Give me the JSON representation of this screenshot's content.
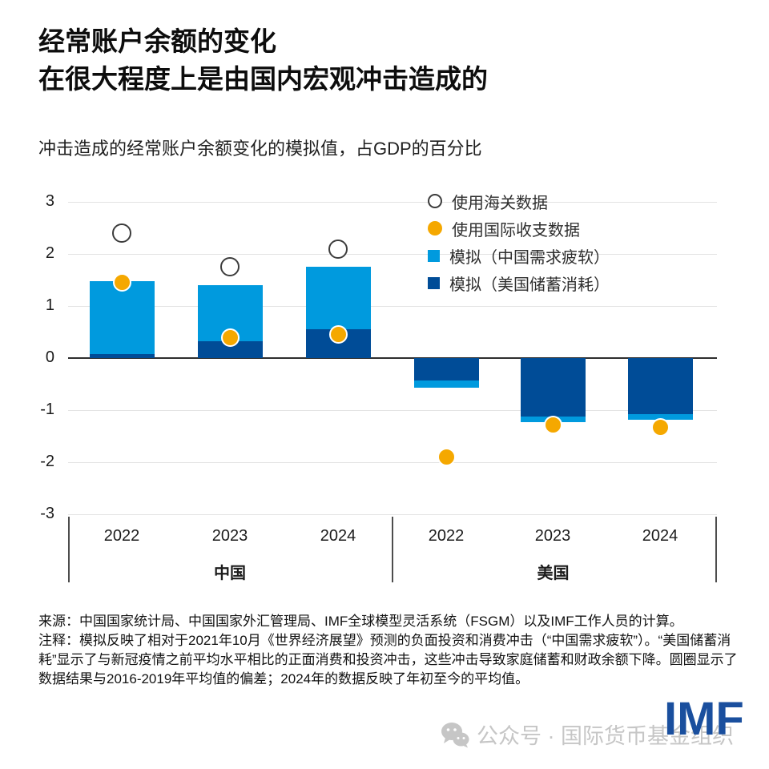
{
  "title": {
    "line1": "经常账户余额的变化",
    "line2": "在很大程度上是由国内宏观冲击造成的"
  },
  "subtitle": "冲击造成的经常账户余额变化的模拟值，占GDP的百分比",
  "legend": {
    "items": [
      {
        "label": "使用海关数据",
        "marker": "open-circle",
        "color": "#ffffff"
      },
      {
        "label": "使用国际收支数据",
        "marker": "filled-circle",
        "color": "#f5a800"
      },
      {
        "label": "模拟（中国需求疲软）",
        "marker": "square",
        "color": "#009ade"
      },
      {
        "label": "模拟（美国储蓄消耗）",
        "marker": "square",
        "color": "#004c97"
      }
    ]
  },
  "chart_data": {
    "type": "bar",
    "stacked": true,
    "title": "冲击造成的经常账户余额变化的模拟值，占GDP的百分比",
    "ylabel": "占GDP的百分比",
    "ylim": [
      -3,
      3
    ],
    "yticks": [
      3,
      2,
      1,
      0,
      -1,
      -2,
      -3
    ],
    "grid": true,
    "legend_position": "top-right",
    "groups": [
      {
        "label": "中国",
        "categories": [
          "2022",
          "2023",
          "2024"
        ]
      },
      {
        "label": "美国",
        "categories": [
          "2022",
          "2023",
          "2024"
        ]
      }
    ],
    "categories": [
      "2022",
      "2023",
      "2024",
      "2022",
      "2023",
      "2024"
    ],
    "series": [
      {
        "name": "模拟（美国储蓄消耗）",
        "color": "#004c97",
        "values": [
          0.08,
          0.33,
          0.55,
          -0.43,
          -1.12,
          -1.08
        ]
      },
      {
        "name": "模拟（中国需求疲软）",
        "color": "#009ade",
        "values": [
          1.4,
          1.07,
          1.2,
          -0.14,
          -0.11,
          -0.1
        ]
      }
    ],
    "markers": [
      {
        "name": "使用海关数据",
        "style": "open-circle",
        "color": "#ffffff",
        "values": [
          2.4,
          1.75,
          2.1,
          null,
          null,
          null
        ]
      },
      {
        "name": "使用国际收支数据",
        "style": "filled-circle",
        "color": "#f5a800",
        "values": [
          1.45,
          0.4,
          0.45,
          -1.9,
          -1.28,
          -1.33
        ]
      }
    ]
  },
  "footer": {
    "source": "来源：中国国家统计局、中国国家外汇管理局、IMF全球模型灵活系统（FSGM）以及IMF工作人员的计算。",
    "note": "注释：模拟反映了相对于2021年10月《世界经济展望》预测的负面投资和消费冲击（“中国需求疲软”）。“美国储蓄消耗”显示了与新冠疫情之前平均水平相比的正面消费和投资冲击，这些冲击导致家庭储蓄和财政余额下降。圆圈显示了数据结果与2016-2019年平均值的偏差；2024年的数据反映了年初至今的平均值。"
  },
  "watermark": {
    "icon": "wechat-icon",
    "text": "公众号 · 国际货币基金组织"
  },
  "logo": {
    "text": "IMF",
    "color": "#1a4f9e"
  }
}
